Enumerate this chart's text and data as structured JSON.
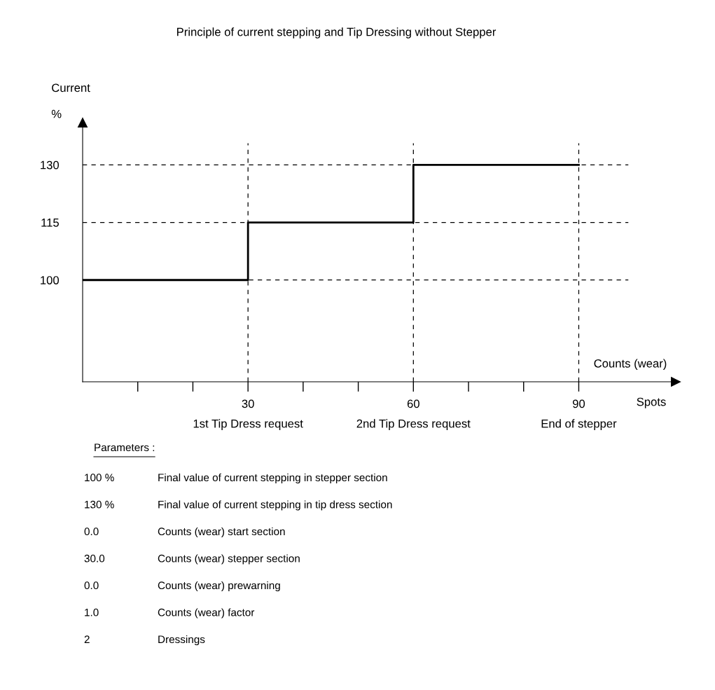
{
  "chart_data": {
    "type": "step",
    "title": "Principle of current stepping and Tip Dressing without Stepper",
    "ylabel": "Current\n%",
    "xlabel": "Counts (wear)",
    "x": [
      0,
      30,
      60,
      90
    ],
    "series": [
      {
        "color": "#000000",
        "values": [
          100,
          115,
          130,
          130
        ]
      }
    ],
    "xlim": [
      0,
      107.6
    ],
    "ylim": [
      73.5,
      141
    ],
    "xticks": [
      {
        "value": 10,
        "label": null
      },
      {
        "value": 20,
        "label": null
      },
      30,
      {
        "value": 40,
        "label": null
      },
      {
        "value": 50,
        "label": null
      },
      60,
      {
        "value": 70,
        "label": null
      },
      {
        "value": 80,
        "label": null
      },
      90
    ],
    "yticks": [
      100,
      115,
      130
    ],
    "ref_lines": [
      {
        "axis": "y",
        "value": 100,
        "label": null,
        "line_style": "dashed",
        "color": "#000000"
      },
      {
        "axis": "y",
        "value": 115,
        "label": null,
        "line_style": "dashed",
        "color": "#000000"
      },
      {
        "axis": "y",
        "value": 130,
        "label": null,
        "line_style": "dashed",
        "color": "#000000"
      },
      {
        "axis": "x",
        "value": 30,
        "label": null,
        "line_style": "dashed",
        "color": "#000000"
      },
      {
        "axis": "x",
        "value": 60,
        "label": null,
        "line_style": "dashed",
        "color": "#000000"
      },
      {
        "axis": "x",
        "value": 90,
        "label": null,
        "line_style": "dashed",
        "color": "#000000"
      }
    ],
    "grid": false,
    "legend": false,
    "line_style": "solid",
    "marker": "none",
    "annotations": [
      "1st Tip Dress request",
      "2nd Tip Dress request",
      "End of stepper",
      "Spots",
      "Parameters :",
      "100 %",
      "Final value of current stepping in stepper section",
      "130 %",
      "Final value of current stepping in tip dress section",
      "0.0",
      "Counts (wear) start section",
      "30.0",
      "Counts (wear) stepper section",
      "0.0",
      "Counts (wear) prewarning",
      "1.0",
      "Counts (wear) factor",
      "2",
      "Dressings"
    ]
  }
}
